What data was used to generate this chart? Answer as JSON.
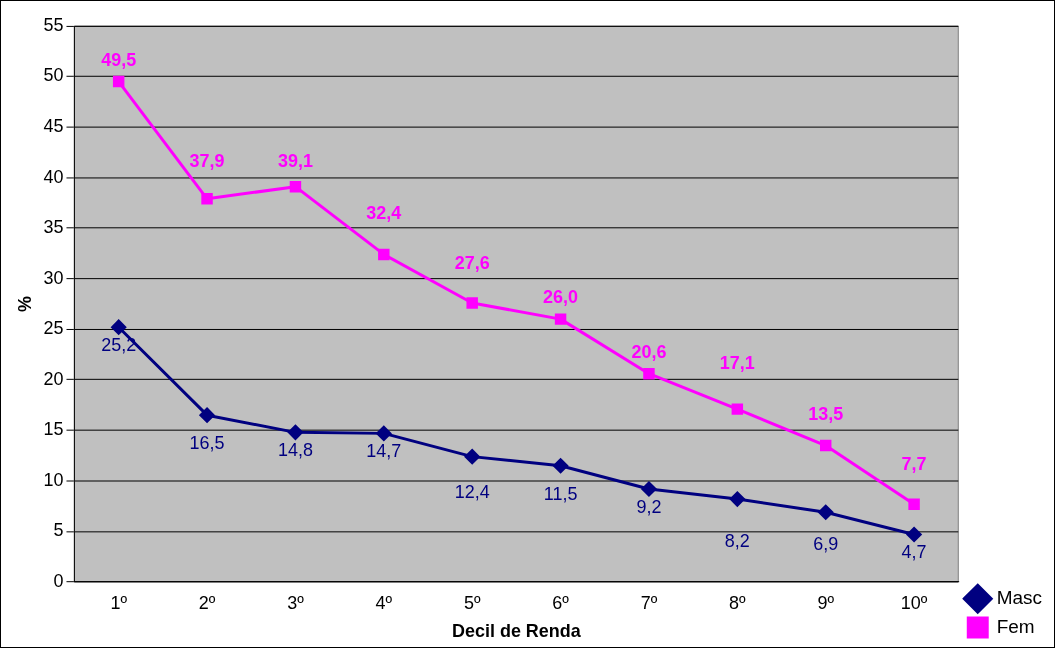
{
  "chart_data": {
    "type": "line",
    "xlabel": "Decil de Renda",
    "ylabel": "%",
    "categories": [
      "1º",
      "2º",
      "3º",
      "4º",
      "5º",
      "6º",
      "7º",
      "8º",
      "9º",
      "10º"
    ],
    "series": [
      {
        "name": "Masc",
        "color": "#000080",
        "marker": "diamond",
        "values": [
          25.2,
          16.5,
          14.8,
          14.7,
          12.4,
          11.5,
          9.2,
          8.2,
          6.9,
          4.7
        ],
        "value_labels": [
          "25,2",
          "16,5",
          "14,8",
          "14,7",
          "12,4",
          "11,5",
          "9,2",
          "8,2",
          "6,9",
          "4,7"
        ]
      },
      {
        "name": "Fem",
        "color": "#ff00ff",
        "marker": "square",
        "values": [
          49.5,
          37.9,
          39.1,
          32.4,
          27.6,
          26.0,
          20.6,
          17.1,
          13.5,
          7.7
        ],
        "value_labels": [
          "49,5",
          "37,9",
          "39,1",
          "32,4",
          "27,6",
          "26,0",
          "20,6",
          "17,1",
          "13,5",
          "7,7"
        ]
      }
    ],
    "ylim": [
      0,
      55
    ],
    "yticks": [
      0,
      5,
      10,
      15,
      20,
      25,
      30,
      35,
      40,
      45,
      50,
      55
    ],
    "grid": "y",
    "legend": "bottom right",
    "line_style": "solid"
  }
}
